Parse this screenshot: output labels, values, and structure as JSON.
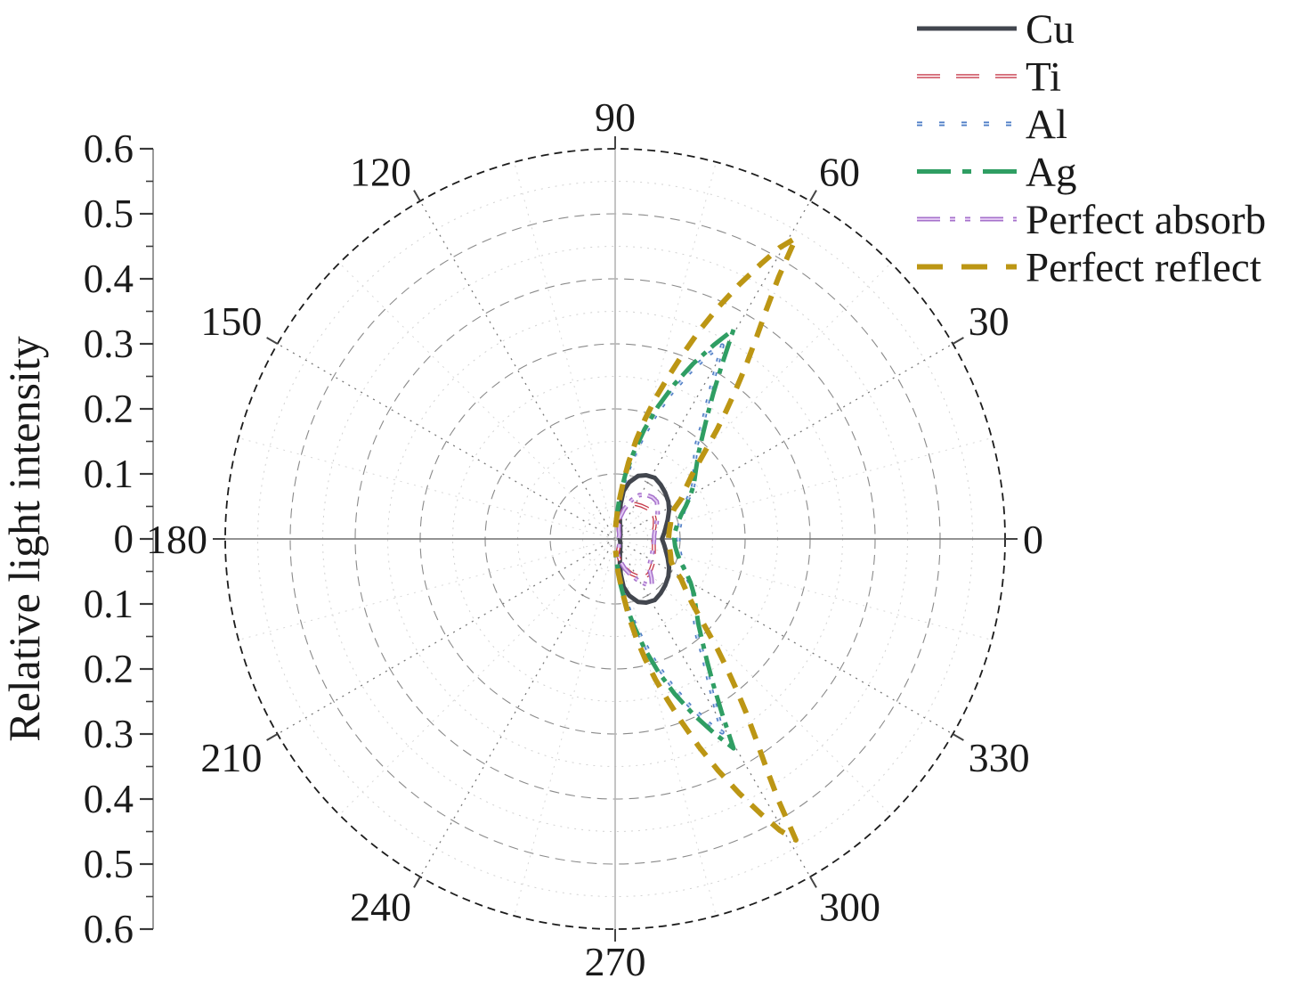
{
  "figure": {
    "background": "#ffffff"
  },
  "chart_data": {
    "type": "line-polar",
    "title": "",
    "radial_axis": {
      "title": "Relative light intensity",
      "max": 0.6,
      "major_step": 0.1,
      "minor_step": 0.05,
      "tick_labels": [
        "0.6",
        "0.5",
        "0.4",
        "0.3",
        "0.2",
        "0.1",
        "0",
        "0.1",
        "0.2",
        "0.3",
        "0.4",
        "0.5",
        "0.6"
      ]
    },
    "angular_axis": {
      "unit": "degrees",
      "major_step": 30,
      "minor_step": 15,
      "labels": [
        {
          "angle": 0,
          "label": "0"
        },
        {
          "angle": 30,
          "label": "30"
        },
        {
          "angle": 60,
          "label": "60"
        },
        {
          "angle": 90,
          "label": "90"
        },
        {
          "angle": 120,
          "label": "120"
        },
        {
          "angle": 150,
          "label": "150"
        },
        {
          "angle": 180,
          "label": "180"
        },
        {
          "angle": 210,
          "label": "210"
        },
        {
          "angle": 240,
          "label": "240"
        },
        {
          "angle": 270,
          "label": "270"
        },
        {
          "angle": 300,
          "label": "300"
        },
        {
          "angle": 330,
          "label": "330"
        }
      ]
    },
    "legend": {
      "position": "top-right"
    },
    "series": [
      {
        "name": "Cu",
        "color": "#42464e",
        "line_style": "solid",
        "closed": true,
        "points": [
          [
            81,
            0.055
          ],
          [
            80,
            0.075
          ],
          [
            76,
            0.09
          ],
          [
            70,
            0.103
          ],
          [
            64,
            0.109
          ],
          [
            57,
            0.112
          ],
          [
            50,
            0.109
          ],
          [
            43,
            0.105
          ],
          [
            35,
            0.1
          ],
          [
            28,
            0.094
          ],
          [
            20,
            0.086
          ],
          [
            13,
            0.08
          ],
          [
            7,
            0.076
          ],
          [
            2,
            0.073
          ],
          [
            0,
            0.072
          ],
          [
            -2,
            0.073
          ],
          [
            -7,
            0.076
          ],
          [
            -13,
            0.08
          ],
          [
            -20,
            0.086
          ],
          [
            -28,
            0.094
          ],
          [
            -35,
            0.1
          ],
          [
            -43,
            0.105
          ],
          [
            -50,
            0.109
          ],
          [
            -57,
            0.112
          ],
          [
            -64,
            0.109
          ],
          [
            -70,
            0.103
          ],
          [
            -76,
            0.09
          ],
          [
            -80,
            0.075
          ],
          [
            -81,
            0.055
          ],
          [
            -79,
            0.038
          ],
          [
            -72,
            0.024
          ],
          [
            -55,
            0.014
          ],
          [
            -30,
            0.009
          ],
          [
            0,
            0.007
          ],
          [
            30,
            0.009
          ],
          [
            55,
            0.014
          ],
          [
            72,
            0.024
          ],
          [
            79,
            0.038
          ]
        ]
      },
      {
        "name": "Ti",
        "color": "#c63b4b",
        "core_color": "#ffffff",
        "line_style": "dashed",
        "closed": true,
        "points": [
          [
            80,
            0.03
          ],
          [
            75,
            0.045
          ],
          [
            68,
            0.056
          ],
          [
            60,
            0.062
          ],
          [
            52,
            0.065
          ],
          [
            44,
            0.068
          ],
          [
            34,
            0.071
          ],
          [
            26,
            0.068
          ],
          [
            18,
            0.064
          ],
          [
            10,
            0.06
          ],
          [
            4,
            0.059
          ],
          [
            0,
            0.058
          ],
          [
            -8,
            0.06
          ],
          [
            -16,
            0.062
          ],
          [
            -24,
            0.065
          ],
          [
            -32,
            0.069
          ],
          [
            -40,
            0.072
          ],
          [
            -47,
            0.075
          ],
          [
            -52,
            0.074
          ],
          [
            -58,
            0.069
          ],
          [
            -65,
            0.059
          ],
          [
            -72,
            0.047
          ],
          [
            -78,
            0.033
          ],
          [
            -80,
            0.022
          ],
          [
            -70,
            0.015
          ],
          [
            -50,
            0.01
          ],
          [
            -25,
            0.007
          ],
          [
            0,
            0.006
          ],
          [
            25,
            0.007
          ],
          [
            50,
            0.01
          ],
          [
            70,
            0.015
          ],
          [
            78,
            0.024
          ]
        ]
      },
      {
        "name": "Al",
        "color": "#4e7cc4",
        "core_color": "#c3d6f0",
        "line_style": "dotted",
        "closed": false,
        "points": [
          [
            88,
            0.022
          ],
          [
            84,
            0.058
          ],
          [
            81,
            0.09
          ],
          [
            78,
            0.125
          ],
          [
            75,
            0.16
          ],
          [
            72,
            0.2
          ],
          [
            69,
            0.24
          ],
          [
            66,
            0.28
          ],
          [
            63,
            0.32
          ],
          [
            61,
            0.34
          ],
          [
            58.5,
            0.29
          ],
          [
            56,
            0.255
          ],
          [
            53,
            0.225
          ],
          [
            49,
            0.19
          ],
          [
            44,
            0.17
          ],
          [
            38,
            0.155
          ],
          [
            32,
            0.14
          ],
          [
            28,
            0.125
          ],
          [
            23,
            0.115
          ],
          [
            17,
            0.106
          ],
          [
            10,
            0.1
          ],
          [
            4,
            0.098
          ],
          [
            0,
            0.097
          ],
          [
            -4,
            0.098
          ],
          [
            -10,
            0.1
          ],
          [
            -17,
            0.106
          ],
          [
            -23,
            0.115
          ],
          [
            -28,
            0.125
          ],
          [
            -32,
            0.14
          ],
          [
            -38,
            0.155
          ],
          [
            -44,
            0.17
          ],
          [
            -49,
            0.19
          ],
          [
            -53,
            0.225
          ],
          [
            -56,
            0.255
          ],
          [
            -58.5,
            0.29
          ],
          [
            -61,
            0.34
          ],
          [
            -63,
            0.32
          ],
          [
            -66,
            0.28
          ],
          [
            -69,
            0.24
          ],
          [
            -72,
            0.2
          ],
          [
            -75,
            0.16
          ],
          [
            -78,
            0.125
          ],
          [
            -81,
            0.09
          ],
          [
            -84,
            0.058
          ],
          [
            -88,
            0.022
          ]
        ]
      },
      {
        "name": "Ag",
        "color": "#2f9e63",
        "line_style": "dash-dot",
        "closed": false,
        "points": [
          [
            88,
            0.025
          ],
          [
            84,
            0.065
          ],
          [
            81,
            0.1
          ],
          [
            78,
            0.135
          ],
          [
            75,
            0.175
          ],
          [
            72,
            0.215
          ],
          [
            69,
            0.255
          ],
          [
            66,
            0.295
          ],
          [
            63,
            0.335
          ],
          [
            60.5,
            0.37
          ],
          [
            58.5,
            0.315
          ],
          [
            56,
            0.27
          ],
          [
            53,
            0.235
          ],
          [
            50,
            0.21
          ],
          [
            46,
            0.185
          ],
          [
            41,
            0.165
          ],
          [
            35,
            0.148
          ],
          [
            30,
            0.134
          ],
          [
            25,
            0.12
          ],
          [
            20,
            0.108
          ],
          [
            14,
            0.099
          ],
          [
            7,
            0.093
          ],
          [
            0,
            0.091
          ],
          [
            -7,
            0.093
          ],
          [
            -14,
            0.099
          ],
          [
            -20,
            0.108
          ],
          [
            -25,
            0.12
          ],
          [
            -30,
            0.134
          ],
          [
            -35,
            0.148
          ],
          [
            -41,
            0.165
          ],
          [
            -46,
            0.185
          ],
          [
            -50,
            0.21
          ],
          [
            -53,
            0.235
          ],
          [
            -56,
            0.27
          ],
          [
            -58.5,
            0.315
          ],
          [
            -60.5,
            0.37
          ],
          [
            -63,
            0.335
          ],
          [
            -66,
            0.295
          ],
          [
            -69,
            0.255
          ],
          [
            -72,
            0.215
          ],
          [
            -75,
            0.175
          ],
          [
            -78,
            0.135
          ],
          [
            -81,
            0.1
          ],
          [
            -84,
            0.065
          ],
          [
            -88,
            0.025
          ]
        ]
      },
      {
        "name": "Perfect absorb",
        "color": "#a671cb",
        "core_color": "#e2c8f2",
        "line_style": "dash-dot-dot",
        "closed": true,
        "points": [
          [
            78,
            0.032
          ],
          [
            73,
            0.048
          ],
          [
            67,
            0.065
          ],
          [
            61,
            0.077
          ],
          [
            55,
            0.083
          ],
          [
            48,
            0.086
          ],
          [
            42,
            0.086
          ],
          [
            35,
            0.08
          ],
          [
            27,
            0.073
          ],
          [
            19,
            0.067
          ],
          [
            11,
            0.062
          ],
          [
            4,
            0.06
          ],
          [
            0,
            0.06
          ],
          [
            -10,
            0.06
          ],
          [
            -20,
            0.061
          ],
          [
            -29,
            0.063
          ],
          [
            -37,
            0.066
          ],
          [
            -43,
            0.073
          ],
          [
            -47,
            0.082
          ],
          [
            -51,
            0.09
          ],
          [
            -55,
            0.086
          ],
          [
            -60,
            0.076
          ],
          [
            -66,
            0.062
          ],
          [
            -72,
            0.048
          ],
          [
            -77,
            0.035
          ],
          [
            -80,
            0.024
          ],
          [
            -66,
            0.014
          ],
          [
            -45,
            0.009
          ],
          [
            -20,
            0.006
          ],
          [
            0,
            0.005
          ],
          [
            20,
            0.006
          ],
          [
            45,
            0.009
          ],
          [
            66,
            0.014
          ],
          [
            77,
            0.026
          ]
        ]
      },
      {
        "name": "Perfect reflect",
        "color": "#bc9614",
        "line_style": "bold-dashed",
        "closed": false,
        "points": [
          [
            88,
            0.018
          ],
          [
            85,
            0.05
          ],
          [
            82,
            0.085
          ],
          [
            80,
            0.12
          ],
          [
            78,
            0.155
          ],
          [
            76,
            0.19
          ],
          [
            74,
            0.225
          ],
          [
            72,
            0.26
          ],
          [
            70,
            0.3
          ],
          [
            68,
            0.345
          ],
          [
            66,
            0.39
          ],
          [
            64,
            0.435
          ],
          [
            62,
            0.48
          ],
          [
            60.5,
            0.515
          ],
          [
            59,
            0.54
          ],
          [
            58,
            0.475
          ],
          [
            56.5,
            0.42
          ],
          [
            55,
            0.38
          ],
          [
            53,
            0.335
          ],
          [
            51,
            0.295
          ],
          [
            49,
            0.26
          ],
          [
            47,
            0.23
          ],
          [
            44,
            0.19
          ],
          [
            40,
            0.155
          ],
          [
            36,
            0.135
          ],
          [
            31,
            0.118
          ],
          [
            27,
            0.102
          ],
          [
            22,
            0.093
          ],
          [
            15,
            0.088
          ],
          [
            8,
            0.084
          ],
          [
            0,
            0.082
          ],
          [
            -8,
            0.084
          ],
          [
            -15,
            0.088
          ],
          [
            -22,
            0.093
          ],
          [
            -27,
            0.102
          ],
          [
            -31,
            0.118
          ],
          [
            -36,
            0.135
          ],
          [
            -40,
            0.155
          ],
          [
            -44,
            0.19
          ],
          [
            -47,
            0.23
          ],
          [
            -49,
            0.26
          ],
          [
            -51,
            0.295
          ],
          [
            -53,
            0.335
          ],
          [
            -55,
            0.38
          ],
          [
            -56.5,
            0.42
          ],
          [
            -58,
            0.475
          ],
          [
            -59,
            0.54
          ],
          [
            -60.5,
            0.515
          ],
          [
            -62,
            0.48
          ],
          [
            -64,
            0.435
          ],
          [
            -66,
            0.39
          ],
          [
            -68,
            0.345
          ],
          [
            -70,
            0.3
          ],
          [
            -72,
            0.26
          ],
          [
            -74,
            0.225
          ],
          [
            -76,
            0.19
          ],
          [
            -78,
            0.155
          ],
          [
            -80,
            0.12
          ],
          [
            -82,
            0.085
          ],
          [
            -85,
            0.05
          ],
          [
            -88,
            0.018
          ]
        ]
      }
    ]
  }
}
